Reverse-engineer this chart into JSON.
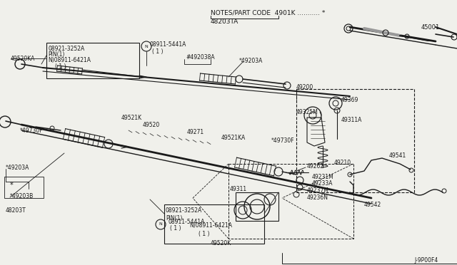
{
  "bg": "#f0f0eb",
  "lc": "#1a1a1a",
  "tc": "#1a1a1a",
  "fig_w": 6.4,
  "fig_h": 3.72,
  "dpi": 100,
  "notes": "NOTES/PART CODE  4901K ........... *",
  "sub": "48203TA",
  "code": "J-9P00F4"
}
